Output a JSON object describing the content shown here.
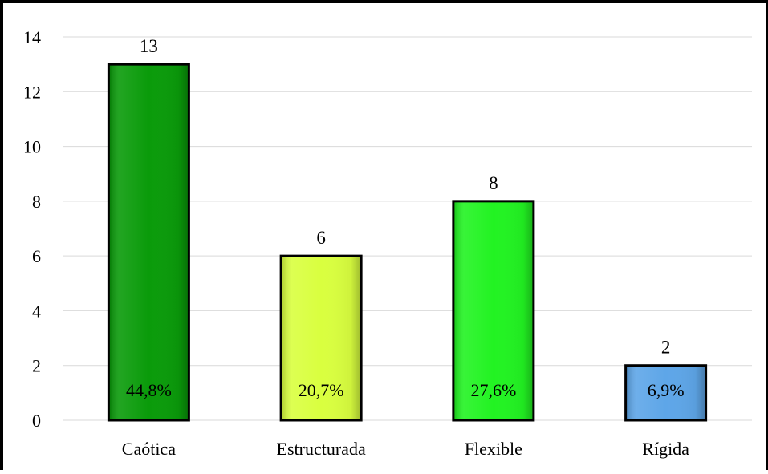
{
  "chart_data": {
    "type": "bar",
    "categories": [
      "Caótica",
      "Estructurada",
      "Flexible",
      "Rígida"
    ],
    "values": [
      13,
      6,
      8,
      2
    ],
    "percent_labels": [
      "44,8%",
      "20,7%",
      "27,6%",
      "6,9%"
    ],
    "ylim": [
      0,
      14
    ],
    "yticks": [
      0,
      2,
      4,
      6,
      8,
      10,
      12,
      14
    ],
    "grid": true,
    "legend": "none",
    "colors": [
      "#0a9b0a",
      "#d9ff3f",
      "#22f322",
      "#5ea6e8"
    ],
    "title": "",
    "xlabel": "",
    "ylabel": ""
  }
}
